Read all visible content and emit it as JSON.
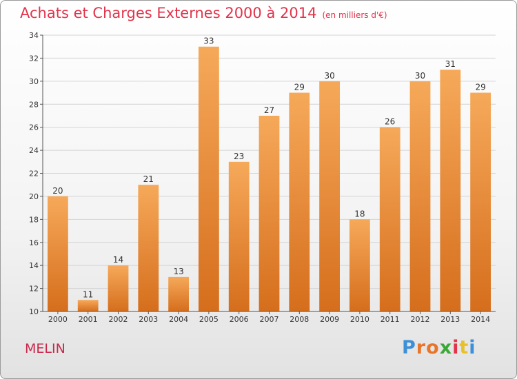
{
  "title": "Achats et Charges Externes 2000 à 2014",
  "subtitle": "(en milliers d'€)",
  "commune": "MELIN",
  "logo": {
    "text": "Proxiti",
    "colors": [
      "#3c8fd8",
      "#e8762a",
      "#e8762a",
      "#3aa836",
      "#e2334a",
      "#e8c12a",
      "#3c8fd8"
    ]
  },
  "colors": {
    "title": "#e2334a",
    "bar_light": "#f6a95a",
    "bar_dark": "#d56e1c",
    "grid": "#d4d4d4",
    "axis": "#555555"
  },
  "chart_data": {
    "type": "bar",
    "title": "Achats et Charges Externes 2000 à 2014",
    "subtitle": "(en milliers d'€)",
    "categories": [
      "2000",
      "2001",
      "2002",
      "2003",
      "2004",
      "2005",
      "2006",
      "2007",
      "2008",
      "2009",
      "2010",
      "2011",
      "2012",
      "2013",
      "2014"
    ],
    "values": [
      20,
      11,
      14,
      21,
      13,
      33,
      23,
      27,
      29,
      30,
      18,
      26,
      30,
      31,
      29
    ],
    "ylim": [
      10,
      34
    ],
    "yticks": [
      10,
      12,
      14,
      16,
      18,
      20,
      22,
      24,
      26,
      28,
      30,
      32,
      34
    ],
    "grid": true,
    "legend": "none",
    "xlabel": "",
    "ylabel": ""
  }
}
